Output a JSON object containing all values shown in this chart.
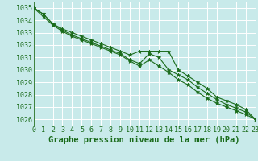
{
  "title": "Graphe pression niveau de la mer (hPa)",
  "xlim": [
    0,
    23
  ],
  "ylim": [
    1025.5,
    1035.5
  ],
  "yticks": [
    1026,
    1027,
    1028,
    1029,
    1030,
    1031,
    1032,
    1033,
    1034,
    1035
  ],
  "xticks": [
    0,
    1,
    2,
    3,
    4,
    5,
    6,
    7,
    8,
    9,
    10,
    11,
    12,
    13,
    14,
    15,
    16,
    17,
    18,
    19,
    20,
    21,
    22,
    23
  ],
  "bg_color": "#c8eaea",
  "grid_color": "#b0d8d8",
  "line_color1": "#1a6b1a",
  "line_color2": "#1a6b1a",
  "line_color3": "#1a6b1a",
  "text_color": "#1a6b1a",
  "series1": [
    1035.0,
    1034.5,
    1033.7,
    1033.3,
    1033.0,
    1032.7,
    1032.4,
    1032.1,
    1031.8,
    1031.5,
    1031.2,
    1031.5,
    1031.5,
    1031.5,
    1031.5,
    1030.0,
    1029.5,
    1029.0,
    1028.5,
    1027.8,
    1027.5,
    1027.2,
    1026.8,
    1026.0
  ],
  "series2": [
    1035.0,
    1034.5,
    1033.7,
    1033.2,
    1032.8,
    1032.5,
    1032.2,
    1031.9,
    1031.6,
    1031.3,
    1030.8,
    1030.5,
    1031.3,
    1031.0,
    1030.0,
    1029.6,
    1029.2,
    1028.6,
    1028.1,
    1027.6,
    1027.2,
    1026.9,
    1026.6,
    1026.0
  ],
  "series3": [
    1035.0,
    1034.3,
    1033.6,
    1033.1,
    1032.7,
    1032.4,
    1032.1,
    1031.8,
    1031.5,
    1031.2,
    1030.7,
    1030.3,
    1030.8,
    1030.3,
    1029.8,
    1029.2,
    1028.8,
    1028.2,
    1027.7,
    1027.3,
    1027.0,
    1026.7,
    1026.4,
    1026.0
  ],
  "marker": "*",
  "markersize": 3.5,
  "linewidth": 0.8,
  "title_fontsize": 7.5,
  "tick_fontsize": 6.0,
  "figsize": [
    3.2,
    2.0
  ],
  "dpi": 100
}
